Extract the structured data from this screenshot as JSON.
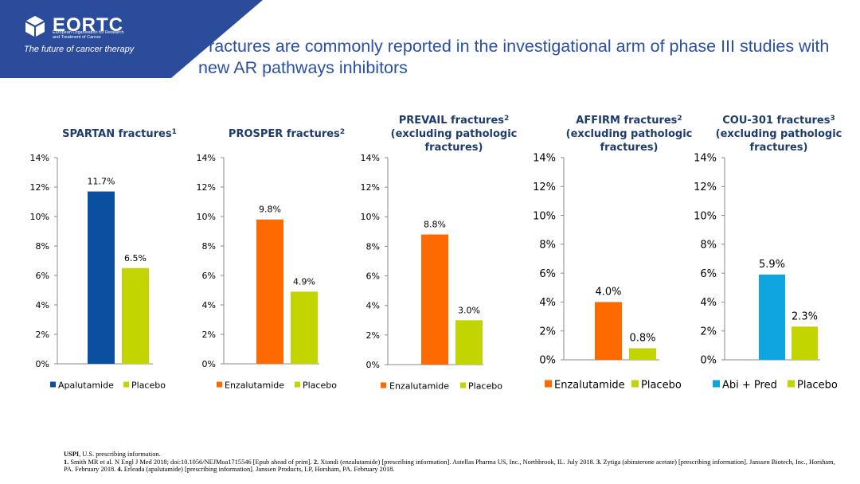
{
  "logo": {
    "name": "EORTC",
    "subtitle": "European Organisation for Research and Treatment of Cancer",
    "tagline": "The future of cancer therapy"
  },
  "slide_title": "Fractures are commonly reported in the investigational arm of phase III studies with new AR pathways inhibitors",
  "colors": {
    "blue": "#0a4fa0",
    "orange": "#ff6a00",
    "green": "#c3d500",
    "lightblue": "#0ea5e0",
    "title_blue": "#2a4fa3",
    "corner": "#2b4c9b"
  },
  "chart_data": [
    {
      "type": "bar",
      "title": "SPARTAN fractures",
      "title_sup": "1",
      "categories": [
        "Apalutamide",
        "Placebo"
      ],
      "values": [
        11.7,
        6.5
      ],
      "labels": [
        "11.7%",
        "6.5%"
      ],
      "colors": [
        "#0a4fa0",
        "#c3d500"
      ],
      "ylim": [
        0,
        14
      ],
      "yticks": [
        "0%",
        "2%",
        "4%",
        "6%",
        "8%",
        "10%",
        "12%",
        "14%"
      ],
      "legend_position": "bottom"
    },
    {
      "type": "bar",
      "title": "PROSPER fractures",
      "title_sup": "2",
      "categories": [
        "Enzalutamide",
        "Placebo"
      ],
      "values": [
        9.8,
        4.9
      ],
      "labels": [
        "9.8%",
        "4.9%"
      ],
      "colors": [
        "#ff6a00",
        "#c3d500"
      ],
      "ylim": [
        0,
        14
      ],
      "yticks": [
        "0%",
        "2%",
        "4%",
        "6%",
        "8%",
        "10%",
        "12%",
        "14%"
      ],
      "legend_position": "bottom"
    },
    {
      "type": "bar",
      "title": "PREVAIL fractures",
      "title_sup": "2",
      "title2": "(excluding pathologic",
      "title3": "fractures)",
      "categories": [
        "Enzalutamide",
        "Placebo"
      ],
      "values": [
        8.8,
        3.0
      ],
      "labels": [
        "8.8%",
        "3.0%"
      ],
      "colors": [
        "#ff6a00",
        "#c3d500"
      ],
      "ylim": [
        0,
        14
      ],
      "yticks": [
        "0%",
        "2%",
        "4%",
        "6%",
        "8%",
        "10%",
        "12%",
        "14%"
      ],
      "legend_position": "bottom"
    },
    {
      "type": "bar",
      "title": "AFFIRM fractures",
      "title_sup": "2",
      "title2": "(excluding pathologic",
      "title3": "fractures)",
      "categories": [
        "Enzalutamide",
        "Placebo"
      ],
      "values": [
        4.0,
        0.8
      ],
      "labels": [
        "4.0%",
        "0.8%"
      ],
      "colors": [
        "#ff6a00",
        "#c3d500"
      ],
      "ylim": [
        0,
        14
      ],
      "yticks": [
        "0%",
        "2%",
        "4%",
        "6%",
        "8%",
        "10%",
        "12%",
        "14%"
      ],
      "legend_position": "bottom"
    },
    {
      "type": "bar",
      "title": "COU-301 fractures",
      "title_sup": "3",
      "title2": "(excluding pathologic",
      "title3": "fractures)",
      "categories": [
        "Abi + Pred",
        "Placebo"
      ],
      "values": [
        5.9,
        2.3
      ],
      "labels": [
        "5.9%",
        "2.3%"
      ],
      "colors": [
        "#0ea5e0",
        "#c3d500"
      ],
      "ylim": [
        0,
        14
      ],
      "yticks": [
        "0%",
        "2%",
        "4%",
        "6%",
        "8%",
        "10%",
        "12%",
        "14%"
      ],
      "legend_position": "bottom"
    }
  ],
  "footer": {
    "abbrev_term": "USPI",
    "abbrev_def": ", U.S. prescribing information.",
    "refs": [
      {
        "num": "1.",
        "text": " Smith MR et al. N Engl J Med 2018; doi:10.1056/NEJMoa1715546 [Epub ahead of print]. "
      },
      {
        "num": "2.",
        "text": " Xtandi (enzalutamide) [prescribing information]. Astellas Pharma US, Inc., Northbrook, IL. July 2018. "
      },
      {
        "num": "3.",
        "text": " Zytiga (abiraterone acetate) [prescribing information]. Janssen Biotech, Inc., Horsham, PA. February 2018. "
      },
      {
        "num": "4.",
        "text": " Erleada (apalutamide) [prescribing information]. Janssen Products, LP, Horsham, PA. February 2018."
      }
    ]
  }
}
